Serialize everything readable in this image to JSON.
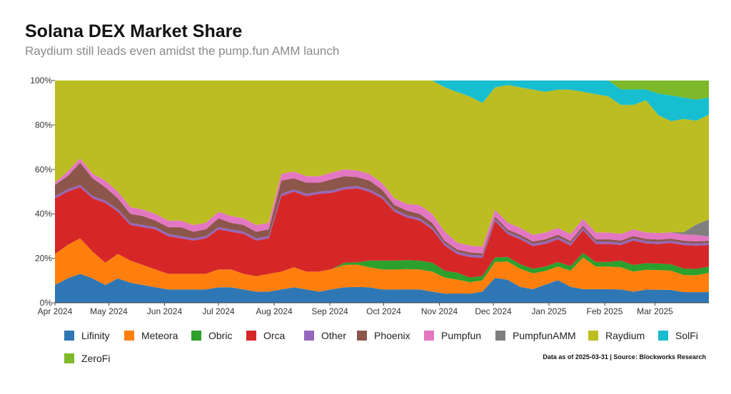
{
  "title": "Solana DEX Market Share",
  "subtitle": "Raydium still leads even amidst the pump.fun AMM launch",
  "source_note": "Data as of 2025-03-31 | Source: Blockworks Research",
  "chart_data": {
    "type": "area",
    "stacked": true,
    "normalized": true,
    "ylim": [
      0,
      100
    ],
    "y_ticks": [
      "0%",
      "20%",
      "40%",
      "60%",
      "80%",
      "100%"
    ],
    "x_ticks": [
      "Apr 2024",
      "May 2024",
      "Jun 2024",
      "Jul 2024",
      "Aug 2024",
      "Sep 2024",
      "Oct 2024",
      "Nov 2024",
      "Dec 2024",
      "Jan 2025",
      "Feb 2025",
      "Mar 2025"
    ],
    "x": [
      "2024-04-01",
      "2024-04-08",
      "2024-04-15",
      "2024-04-22",
      "2024-04-29",
      "2024-05-06",
      "2024-05-13",
      "2024-05-20",
      "2024-05-27",
      "2024-06-03",
      "2024-06-10",
      "2024-06-17",
      "2024-06-24",
      "2024-07-01",
      "2024-07-08",
      "2024-07-15",
      "2024-07-22",
      "2024-07-29",
      "2024-08-05",
      "2024-08-12",
      "2024-08-19",
      "2024-08-26",
      "2024-09-02",
      "2024-09-09",
      "2024-09-16",
      "2024-09-23",
      "2024-09-30",
      "2024-10-07",
      "2024-10-14",
      "2024-10-21",
      "2024-10-28",
      "2024-11-04",
      "2024-11-11",
      "2024-11-18",
      "2024-11-25",
      "2024-12-02",
      "2024-12-09",
      "2024-12-16",
      "2024-12-23",
      "2024-12-30",
      "2025-01-06",
      "2025-01-13",
      "2025-01-20",
      "2025-01-27",
      "2025-02-03",
      "2025-02-10",
      "2025-02-17",
      "2025-02-24",
      "2025-03-03",
      "2025-03-10",
      "2025-03-17",
      "2025-03-24",
      "2025-03-31"
    ],
    "legend_position": "bottom",
    "series": [
      {
        "name": "Lifinity",
        "color": "#2f77b4",
        "values": [
          8,
          11,
          13,
          11,
          8,
          11,
          9,
          8,
          7,
          6,
          6,
          6,
          6,
          7,
          7,
          6,
          5,
          5,
          6,
          7,
          6,
          5,
          6,
          7,
          7,
          7,
          6,
          6,
          6,
          6,
          5,
          4,
          4,
          4,
          5,
          11,
          10,
          7,
          6,
          8,
          10,
          7,
          6,
          6,
          6,
          6,
          5,
          6,
          6,
          6,
          5,
          5,
          5
        ]
      },
      {
        "name": "Meteora",
        "color": "#ff7f0e",
        "values": [
          14,
          15,
          16,
          12,
          10,
          11,
          10,
          9,
          8,
          7,
          7,
          7,
          7,
          8,
          8,
          7,
          7,
          8,
          8,
          9,
          8,
          9,
          9,
          10,
          10,
          9,
          9,
          9,
          9,
          9,
          9,
          7,
          6,
          5,
          5,
          7,
          8,
          8,
          7,
          6,
          6,
          7,
          14,
          10,
          10,
          10,
          9,
          9,
          9,
          9,
          8,
          8,
          9
        ]
      },
      {
        "name": "Obric",
        "color": "#2ca02c",
        "values": [
          0,
          0,
          0,
          0,
          0,
          0,
          0,
          0,
          0,
          0,
          0,
          0,
          0,
          0,
          0,
          0,
          0,
          0,
          0,
          0,
          0,
          0,
          0,
          1,
          1,
          3,
          4,
          4,
          4,
          4,
          4,
          3,
          3,
          2,
          2,
          2,
          2,
          2,
          2,
          2,
          2,
          2,
          2,
          2,
          2,
          3,
          3,
          3,
          3,
          3,
          3,
          3,
          3
        ]
      },
      {
        "name": "Orca",
        "color": "#d62728",
        "values": [
          25,
          24,
          23,
          24,
          27,
          19,
          16,
          17,
          18,
          17,
          16,
          15,
          16,
          18,
          17,
          18,
          16,
          16,
          34,
          34,
          34,
          35,
          34,
          33,
          33,
          31,
          28,
          22,
          19,
          18,
          15,
          11,
          8,
          9,
          8,
          16,
          10,
          11,
          10,
          10,
          10,
          9,
          10,
          8,
          8,
          7,
          11,
          9,
          9,
          10,
          11,
          11,
          10
        ]
      },
      {
        "name": "Other",
        "color": "#9467bd",
        "values": [
          1,
          1,
          1,
          1,
          1,
          1,
          1,
          1,
          1,
          1,
          1,
          1,
          1,
          1,
          1,
          1,
          1,
          1,
          1,
          1,
          1,
          1,
          1,
          1,
          1,
          1,
          1,
          1,
          1,
          1,
          1,
          1,
          1,
          1,
          1,
          1,
          1,
          1,
          1,
          1,
          1,
          1,
          1,
          1,
          1,
          1,
          1,
          1,
          1,
          1,
          1,
          1,
          1
        ]
      },
      {
        "name": "Phoenix",
        "color": "#8c564b",
        "values": [
          5,
          6,
          10,
          8,
          6,
          5,
          4,
          4,
          3,
          3,
          4,
          3,
          3,
          4,
          3,
          3,
          3,
          3,
          6,
          5,
          5,
          4,
          5,
          5,
          4,
          4,
          3,
          2,
          2,
          2,
          2,
          1,
          1,
          1,
          1,
          1,
          1,
          1,
          1,
          1,
          1,
          1,
          1,
          1,
          1,
          1,
          1,
          1,
          1,
          1,
          1,
          1,
          1
        ]
      },
      {
        "name": "Pumpfun",
        "color": "#e377c2",
        "values": [
          1,
          2,
          2,
          2,
          3,
          3,
          3,
          3,
          3,
          3,
          3,
          3,
          3,
          3,
          3,
          3,
          3,
          3,
          3,
          3,
          3,
          3,
          3,
          3,
          3,
          3,
          3,
          3,
          3,
          4,
          4,
          4,
          3,
          3,
          3,
          3,
          3,
          3,
          3,
          3,
          3,
          3,
          3,
          3,
          3,
          3,
          3,
          3,
          3,
          3,
          3,
          3,
          2
        ]
      },
      {
        "name": "PumpfunAMM",
        "color": "#7f7f7f",
        "values": [
          0,
          0,
          0,
          0,
          0,
          0,
          0,
          0,
          0,
          0,
          0,
          0,
          0,
          0,
          0,
          0,
          0,
          0,
          0,
          0,
          0,
          0,
          0,
          0,
          0,
          0,
          0,
          0,
          0,
          0,
          0,
          0,
          0,
          0,
          0,
          0,
          0,
          0,
          0,
          0,
          0,
          0,
          0,
          0,
          0,
          0,
          0,
          0,
          0,
          0,
          1,
          5,
          8
        ]
      },
      {
        "name": "Raydium",
        "color": "#bcbd22",
        "values": [
          46,
          41,
          35,
          42,
          45,
          50,
          57,
          58,
          60,
          63,
          63,
          65,
          64,
          59,
          61,
          62,
          65,
          64,
          42,
          41,
          43,
          43,
          41,
          40,
          40,
          42,
          46,
          53,
          55,
          56,
          60,
          63,
          65,
          65,
          64,
          54,
          60,
          62,
          64,
          62,
          61,
          63,
          56,
          61,
          60,
          58,
          56,
          60,
          54,
          52,
          53,
          49,
          49
        ]
      },
      {
        "name": "SolFi",
        "color": "#17becf",
        "values": [
          0,
          0,
          0,
          0,
          0,
          0,
          0,
          0,
          0,
          0,
          0,
          0,
          0,
          0,
          0,
          0,
          0,
          0,
          0,
          0,
          0,
          0,
          0,
          0,
          0,
          0,
          0,
          0,
          0,
          0,
          0,
          3,
          5,
          7,
          10,
          3,
          2,
          3,
          4,
          5,
          4,
          4,
          5,
          6,
          7,
          7,
          7,
          5,
          10,
          12,
          10,
          10,
          8
        ]
      },
      {
        "name": "ZeroFi",
        "color": "#7db928",
        "values": [
          0,
          0,
          0,
          0,
          0,
          0,
          0,
          0,
          0,
          0,
          0,
          0,
          0,
          0,
          0,
          0,
          0,
          0,
          0,
          0,
          0,
          0,
          0,
          0,
          0,
          0,
          0,
          0,
          0,
          0,
          0,
          0,
          0,
          0,
          0,
          0,
          0,
          0,
          0,
          0,
          0,
          0,
          0,
          0,
          0,
          4,
          4,
          4,
          6,
          7,
          8,
          9,
          8
        ]
      }
    ]
  }
}
